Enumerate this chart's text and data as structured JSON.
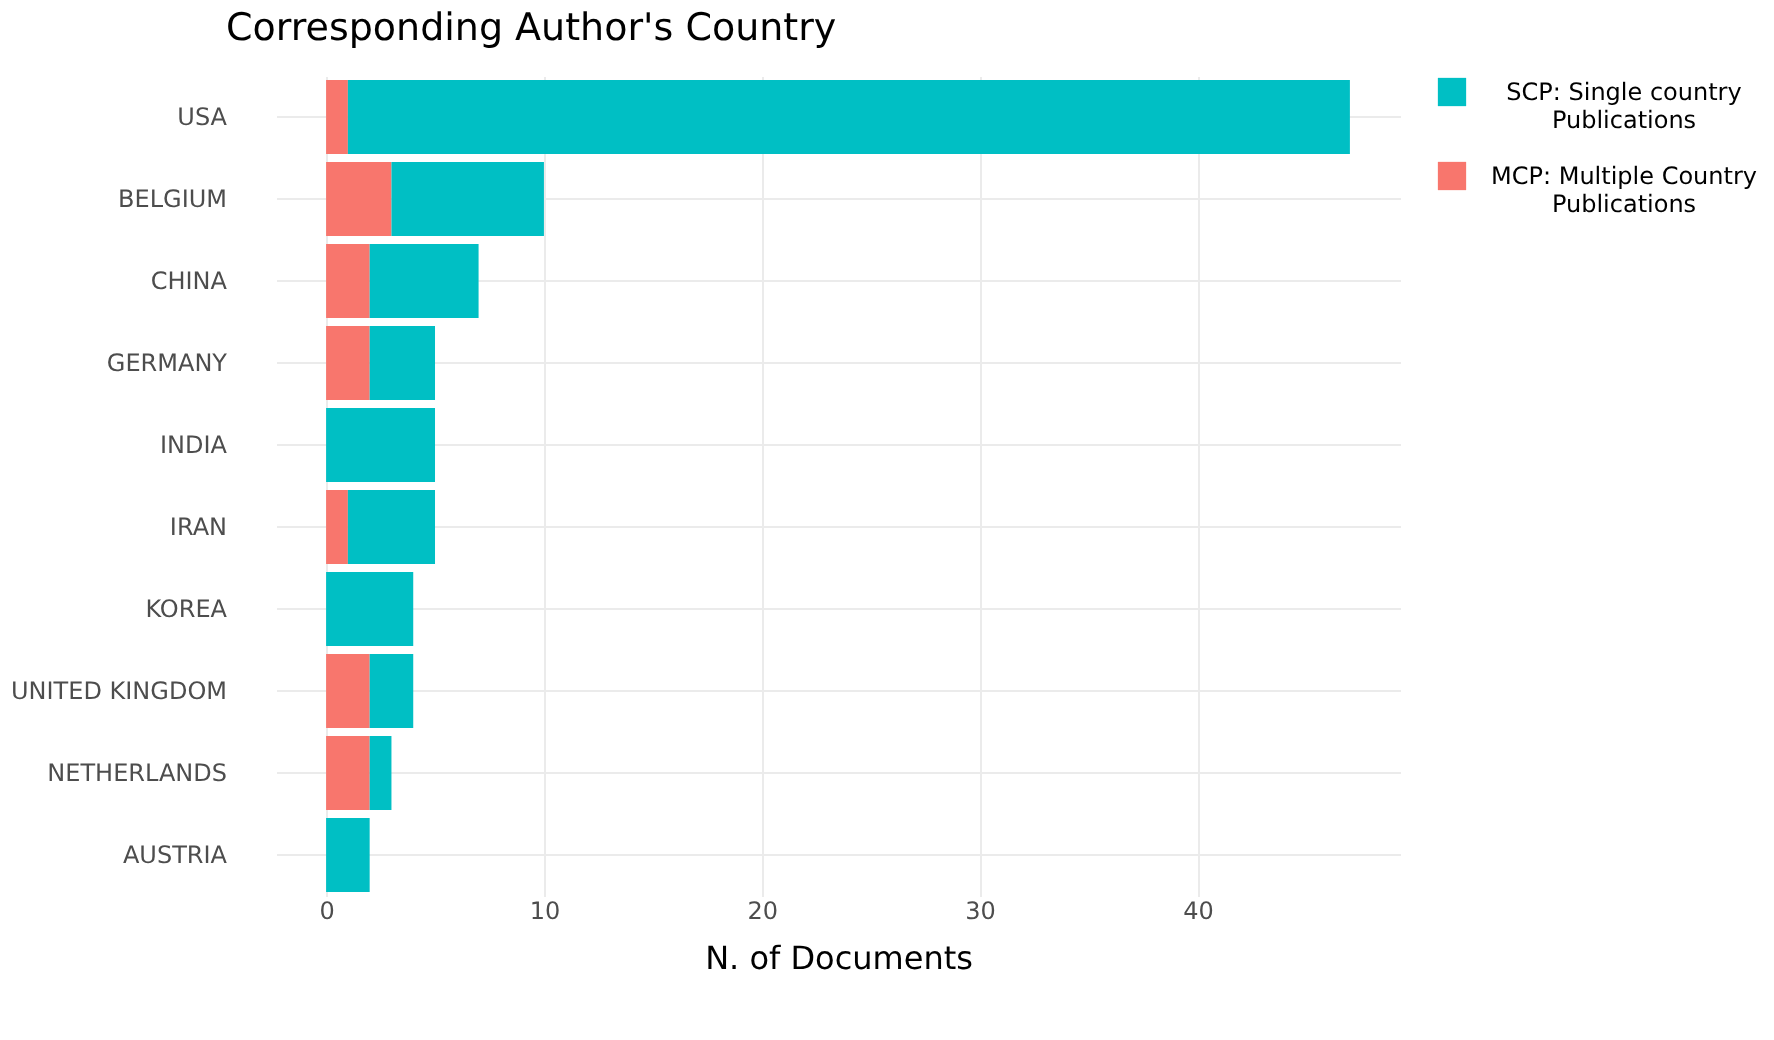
{
  "chart_data": {
    "type": "bar",
    "title": "Corresponding Author's Country",
    "xlabel": "N. of Documents",
    "orientation": "horizontal",
    "stacked": true,
    "categories": [
      "USA",
      "BELGIUM",
      "CHINA",
      "GERMANY",
      "INDIA",
      "IRAN",
      "KOREA",
      "UNITED KINGDOM",
      "NETHERLANDS",
      "AUSTRIA"
    ],
    "series": [
      {
        "name": "MCP: Multiple Country Publications",
        "color": "#f8766d",
        "values": [
          1,
          3,
          2,
          2,
          0,
          1,
          0,
          2,
          2,
          0
        ]
      },
      {
        "name": "SCP: Single country Publications",
        "color": "#00bfc4",
        "values": [
          46,
          7,
          5,
          3,
          5,
          4,
          4,
          2,
          1,
          2
        ]
      }
    ],
    "xlim": [
      -2.3,
      49.3
    ],
    "xticks": [
      0,
      10,
      20,
      30,
      40
    ],
    "grid": true,
    "legend": "right"
  }
}
